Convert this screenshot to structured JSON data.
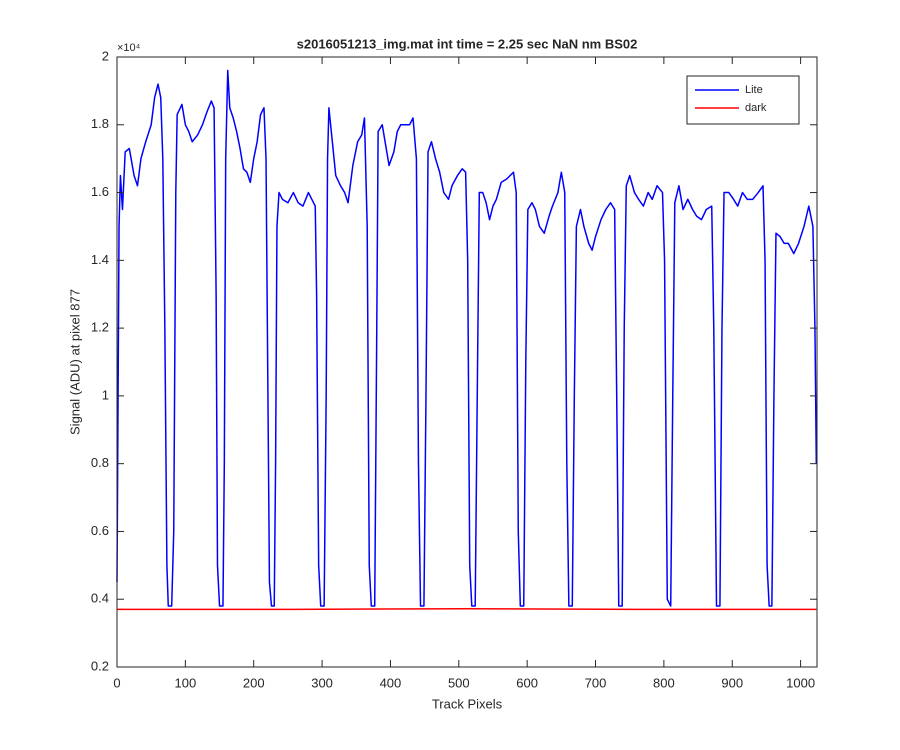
{
  "chart_data": {
    "type": "line",
    "title": "s2016051213_img.mat int time = 2.25 sec  NaN nm BS02",
    "x_label": "Track Pixels",
    "y_label": "Signal (ADU) at pixel 877",
    "y_exponent": "×10⁴",
    "xlim": [
      0,
      1024
    ],
    "xticks": [
      0,
      100,
      200,
      300,
      400,
      500,
      600,
      700,
      800,
      900,
      1000
    ],
    "ylim": [
      0.2,
      2
    ],
    "yticks": [
      0.2,
      0.4,
      0.6,
      0.8,
      1,
      1.2,
      1.4,
      1.6,
      1.8,
      2
    ],
    "legend": "upper right",
    "series": [
      {
        "name": "Lite",
        "color": "#0000ff",
        "x": [
          0,
          3,
          5,
          8,
          12,
          18,
          25,
          30,
          35,
          42,
          50,
          55,
          60,
          64,
          67,
          70,
          73,
          75,
          80,
          83,
          86,
          88,
          95,
          100,
          105,
          110,
          118,
          125,
          132,
          138,
          142,
          145,
          147,
          150,
          155,
          157,
          159,
          162,
          165,
          170,
          175,
          180,
          185,
          190,
          195,
          200,
          205,
          210,
          215,
          218,
          220,
          223,
          226,
          230,
          232,
          234,
          237,
          242,
          250,
          258,
          265,
          272,
          280,
          285,
          290,
          292,
          295,
          298,
          303,
          306,
          308,
          310,
          315,
          320,
          327,
          333,
          338,
          345,
          352,
          358,
          362,
          366,
          369,
          372,
          377,
          380,
          382,
          388,
          393,
          398,
          405,
          410,
          415,
          420,
          428,
          433,
          438,
          441,
          444,
          449,
          452,
          455,
          460,
          466,
          472,
          478,
          485,
          490,
          498,
          505,
          510,
          513,
          516,
          519,
          524,
          527,
          530,
          535,
          540,
          545,
          550,
          555,
          562,
          570,
          575,
          580,
          584,
          587,
          590,
          595,
          598,
          601,
          607,
          612,
          618,
          625,
          632,
          637,
          645,
          650,
          655,
          658,
          661,
          666,
          669,
          672,
          678,
          683,
          690,
          695,
          700,
          708,
          715,
          722,
          728,
          731,
          734,
          739,
          742,
          745,
          750,
          757,
          763,
          770,
          777,
          783,
          790,
          798,
          801,
          805,
          810,
          813,
          816,
          822,
          828,
          835,
          842,
          848,
          855,
          862,
          870,
          873,
          877,
          882,
          885,
          888,
          895,
          902,
          908,
          915,
          922,
          930,
          938,
          945,
          948,
          951,
          954,
          958,
          961,
          964,
          970,
          976,
          982,
          990,
          997,
          1005,
          1012,
          1018,
          1021,
          1023
        ],
        "values": [
          0.45,
          1.5,
          1.65,
          1.55,
          1.72,
          1.73,
          1.65,
          1.62,
          1.7,
          1.75,
          1.8,
          1.88,
          1.92,
          1.88,
          1.7,
          1.2,
          0.5,
          0.38,
          0.38,
          0.6,
          1.6,
          1.83,
          1.86,
          1.8,
          1.78,
          1.75,
          1.77,
          1.8,
          1.84,
          1.87,
          1.85,
          1.3,
          0.5,
          0.38,
          0.38,
          0.8,
          1.7,
          1.96,
          1.85,
          1.82,
          1.78,
          1.73,
          1.67,
          1.66,
          1.63,
          1.7,
          1.75,
          1.83,
          1.85,
          1.7,
          1.2,
          0.45,
          0.38,
          0.38,
          0.8,
          1.5,
          1.6,
          1.58,
          1.57,
          1.6,
          1.57,
          1.56,
          1.6,
          1.58,
          1.56,
          1.3,
          0.5,
          0.38,
          0.38,
          1.0,
          1.7,
          1.85,
          1.75,
          1.65,
          1.62,
          1.6,
          1.57,
          1.68,
          1.75,
          1.77,
          1.82,
          1.5,
          0.5,
          0.38,
          0.38,
          1.2,
          1.78,
          1.8,
          1.74,
          1.68,
          1.72,
          1.78,
          1.8,
          1.8,
          1.8,
          1.82,
          1.7,
          0.8,
          0.38,
          0.38,
          1.0,
          1.72,
          1.75,
          1.7,
          1.66,
          1.6,
          1.58,
          1.62,
          1.65,
          1.67,
          1.66,
          1.4,
          0.5,
          0.38,
          0.38,
          1.0,
          1.6,
          1.6,
          1.57,
          1.52,
          1.56,
          1.58,
          1.63,
          1.64,
          1.65,
          1.66,
          1.6,
          0.6,
          0.38,
          0.38,
          1.1,
          1.55,
          1.57,
          1.55,
          1.5,
          1.48,
          1.53,
          1.56,
          1.6,
          1.66,
          1.6,
          0.8,
          0.38,
          0.38,
          1.0,
          1.5,
          1.55,
          1.5,
          1.45,
          1.43,
          1.47,
          1.52,
          1.55,
          1.57,
          1.55,
          1.0,
          0.38,
          0.38,
          1.2,
          1.62,
          1.65,
          1.6,
          1.58,
          1.56,
          1.6,
          1.58,
          1.62,
          1.6,
          1.4,
          0.4,
          0.38,
          1.0,
          1.57,
          1.62,
          1.55,
          1.58,
          1.55,
          1.53,
          1.52,
          1.55,
          1.56,
          1.2,
          0.38,
          0.38,
          1.2,
          1.6,
          1.6,
          1.58,
          1.56,
          1.6,
          1.58,
          1.58,
          1.6,
          1.62,
          1.4,
          0.5,
          0.38,
          0.38,
          1.0,
          1.48,
          1.47,
          1.45,
          1.45,
          1.42,
          1.45,
          1.5,
          1.56,
          1.5,
          1.2,
          0.8
        ]
      },
      {
        "name": "dark",
        "color": "#ff0000",
        "x": [
          0,
          256,
          512,
          768,
          1023
        ],
        "values": [
          0.37,
          0.37,
          0.372,
          0.37,
          0.37
        ]
      }
    ]
  }
}
